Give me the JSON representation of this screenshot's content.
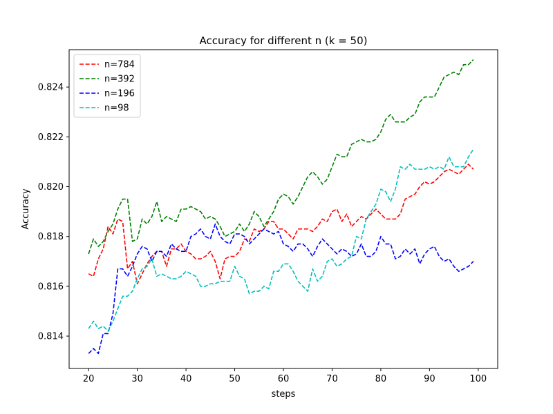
{
  "chart_data": {
    "type": "line",
    "title": "Accuracy for different n (k = 50)",
    "xlabel": "steps",
    "ylabel": "Accuracy",
    "xlim": [
      16,
      104
    ],
    "ylim": [
      0.8127,
      0.8255
    ],
    "xticks": [
      20,
      30,
      40,
      50,
      60,
      70,
      80,
      90,
      100
    ],
    "yticks": [
      0.814,
      0.816,
      0.818,
      0.82,
      0.822,
      0.824
    ],
    "ytick_labels": [
      "0.814",
      "0.816",
      "0.818",
      "0.820",
      "0.822",
      "0.824"
    ],
    "grid": false,
    "legend_position": "upper-left",
    "x": [
      20,
      21,
      22,
      23,
      24,
      25,
      26,
      27,
      28,
      29,
      30,
      31,
      32,
      33,
      34,
      35,
      36,
      37,
      38,
      39,
      40,
      41,
      42,
      43,
      44,
      45,
      46,
      47,
      48,
      49,
      50,
      51,
      52,
      53,
      54,
      55,
      56,
      57,
      58,
      59,
      60,
      61,
      62,
      63,
      64,
      65,
      66,
      67,
      68,
      69,
      70,
      71,
      72,
      73,
      74,
      75,
      76,
      77,
      78,
      79,
      80,
      81,
      82,
      83,
      84,
      85,
      86,
      87,
      88,
      89,
      90,
      91,
      92,
      93,
      94,
      95,
      96,
      97,
      98,
      99
    ],
    "series": [
      {
        "name": "n=784",
        "color": "#ff0000",
        "values": [
          0.8165,
          0.8164,
          0.8171,
          0.8175,
          0.8184,
          0.8181,
          0.8187,
          0.8186,
          0.8167,
          0.817,
          0.8161,
          0.8165,
          0.8169,
          0.8172,
          0.8174,
          0.8174,
          0.8168,
          0.8175,
          0.8175,
          0.8177,
          0.8174,
          0.8173,
          0.8171,
          0.8171,
          0.8172,
          0.8174,
          0.817,
          0.8163,
          0.8171,
          0.8172,
          0.8172,
          0.8174,
          0.8179,
          0.8178,
          0.8183,
          0.8182,
          0.8183,
          0.8186,
          0.8186,
          0.8183,
          0.8183,
          0.8181,
          0.8179,
          0.8183,
          0.8183,
          0.8183,
          0.8182,
          0.8184,
          0.8187,
          0.8186,
          0.819,
          0.8191,
          0.8186,
          0.8189,
          0.8184,
          0.8186,
          0.8188,
          0.8187,
          0.8189,
          0.8191,
          0.8189,
          0.8187,
          0.8187,
          0.8187,
          0.8189,
          0.8195,
          0.8196,
          0.8197,
          0.82,
          0.8202,
          0.8201,
          0.8202,
          0.8204,
          0.8206,
          0.8207,
          0.8206,
          0.8205,
          0.8207,
          0.8209,
          0.8207
        ]
      },
      {
        "name": "n=392",
        "color": "#008000",
        "values": [
          0.8173,
          0.8179,
          0.8176,
          0.8178,
          0.8182,
          0.8185,
          0.8191,
          0.8195,
          0.8195,
          0.8178,
          0.8179,
          0.8187,
          0.8185,
          0.8188,
          0.8194,
          0.8186,
          0.8188,
          0.8187,
          0.8186,
          0.8191,
          0.8191,
          0.8192,
          0.8191,
          0.819,
          0.8187,
          0.8188,
          0.8187,
          0.8184,
          0.818,
          0.8181,
          0.8182,
          0.8185,
          0.8182,
          0.8185,
          0.819,
          0.8188,
          0.8184,
          0.8187,
          0.819,
          0.8195,
          0.8197,
          0.8196,
          0.8193,
          0.8196,
          0.82,
          0.8204,
          0.8206,
          0.8204,
          0.8201,
          0.8203,
          0.8208,
          0.8213,
          0.8212,
          0.8212,
          0.8217,
          0.8218,
          0.8219,
          0.8218,
          0.8218,
          0.8219,
          0.8222,
          0.8227,
          0.8229,
          0.8226,
          0.8226,
          0.8226,
          0.8228,
          0.8229,
          0.8234,
          0.8236,
          0.8236,
          0.8236,
          0.824,
          0.8244,
          0.8245,
          0.8246,
          0.8245,
          0.8249,
          0.8249,
          0.8251
        ]
      },
      {
        "name": "n=196",
        "color": "#0000ff",
        "values": [
          0.8133,
          0.8135,
          0.8133,
          0.8141,
          0.8141,
          0.8149,
          0.8167,
          0.8167,
          0.8164,
          0.8168,
          0.8173,
          0.8176,
          0.8175,
          0.817,
          0.8174,
          0.8174,
          0.8172,
          0.8177,
          0.8175,
          0.8174,
          0.8174,
          0.818,
          0.8181,
          0.8183,
          0.818,
          0.8179,
          0.8185,
          0.818,
          0.8178,
          0.8177,
          0.8181,
          0.8181,
          0.818,
          0.8177,
          0.8179,
          0.8181,
          0.8183,
          0.8182,
          0.8181,
          0.8182,
          0.8177,
          0.8176,
          0.8174,
          0.8177,
          0.8177,
          0.8175,
          0.8172,
          0.8176,
          0.8179,
          0.8177,
          0.8175,
          0.8173,
          0.8175,
          0.8174,
          0.8172,
          0.8173,
          0.8177,
          0.8172,
          0.8172,
          0.8174,
          0.818,
          0.8177,
          0.8177,
          0.8171,
          0.8172,
          0.8175,
          0.8173,
          0.8175,
          0.8169,
          0.8173,
          0.8175,
          0.8176,
          0.8172,
          0.817,
          0.8171,
          0.8168,
          0.8166,
          0.8167,
          0.8168,
          0.817
        ]
      },
      {
        "name": "n=98",
        "color": "#00bfbf",
        "values": [
          0.8143,
          0.8146,
          0.8143,
          0.8144,
          0.8142,
          0.8146,
          0.8151,
          0.8156,
          0.8156,
          0.8158,
          0.8163,
          0.8167,
          0.8168,
          0.8171,
          0.8164,
          0.8165,
          0.8164,
          0.8163,
          0.8163,
          0.8164,
          0.8166,
          0.8165,
          0.8164,
          0.816,
          0.816,
          0.8161,
          0.8161,
          0.8162,
          0.8162,
          0.8162,
          0.8168,
          0.8164,
          0.8163,
          0.8157,
          0.8158,
          0.8158,
          0.816,
          0.8159,
          0.8166,
          0.8166,
          0.8169,
          0.8169,
          0.8166,
          0.8162,
          0.816,
          0.8158,
          0.8167,
          0.8162,
          0.8164,
          0.817,
          0.8171,
          0.8168,
          0.8169,
          0.8171,
          0.8172,
          0.818,
          0.8179,
          0.8187,
          0.819,
          0.8193,
          0.8199,
          0.8198,
          0.8194,
          0.8199,
          0.8208,
          0.8207,
          0.8209,
          0.8207,
          0.8207,
          0.8207,
          0.8208,
          0.8207,
          0.8208,
          0.8207,
          0.8212,
          0.8208,
          0.8208,
          0.8208,
          0.8212,
          0.8215
        ]
      }
    ]
  }
}
